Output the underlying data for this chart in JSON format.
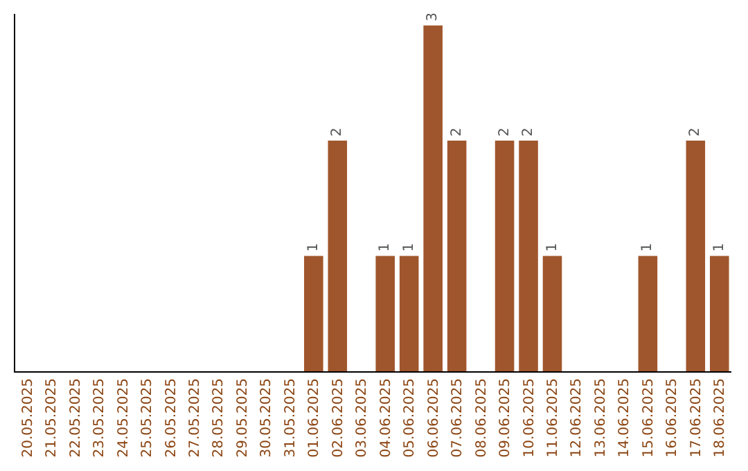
{
  "chart_data": {
    "type": "bar",
    "categories": [
      "20.05.2025",
      "21.05.2025",
      "22.05.2025",
      "23.05.2025",
      "24.05.2025",
      "25.05.2025",
      "26.05.2025",
      "27.05.2025",
      "28.05.2025",
      "29.05.2025",
      "30.05.2025",
      "31.05.2025",
      "01.06.2025",
      "02.06.2025",
      "03.06.2025",
      "04.06.2025",
      "05.06.2025",
      "06.06.2025",
      "07.06.2025",
      "08.06.2025",
      "09.06.2025",
      "10.06.2025",
      "11.06.2025",
      "12.06.2025",
      "13.06.2025",
      "14.06.2025",
      "15.06.2025",
      "16.06.2025",
      "17.06.2025",
      "18.06.2025"
    ],
    "values": [
      null,
      null,
      null,
      null,
      null,
      null,
      null,
      null,
      null,
      null,
      null,
      null,
      1,
      2,
      null,
      1,
      1,
      3,
      2,
      null,
      2,
      2,
      1,
      null,
      null,
      null,
      1,
      null,
      2,
      1
    ],
    "color": "#a0562c",
    "ylim": [
      0,
      3.1
    ],
    "tick_labels": "x",
    "data_labels": true
  }
}
